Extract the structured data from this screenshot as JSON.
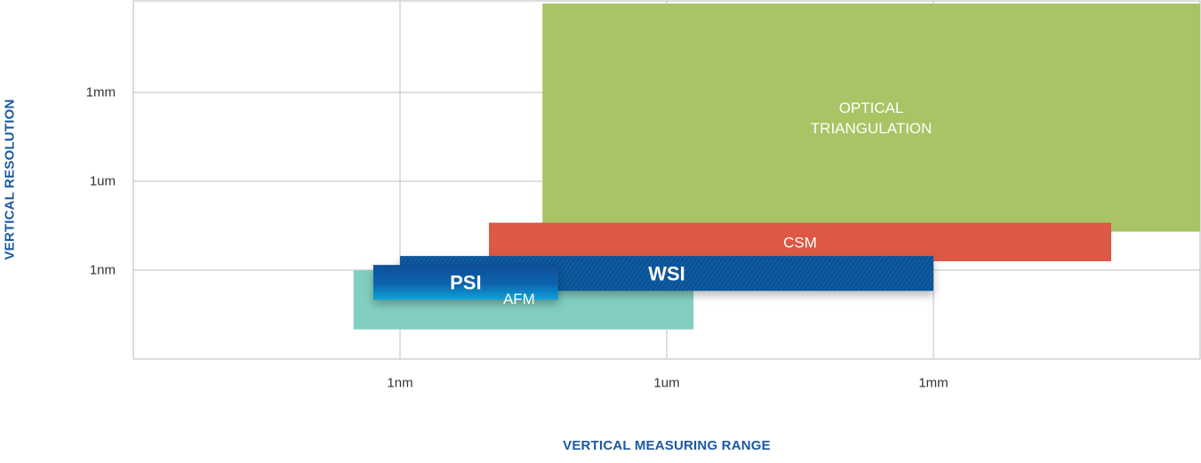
{
  "chart_data": {
    "type": "range-bands",
    "xlabel": "VERTICAL MEASURING RANGE",
    "ylabel": "VERTICAL RESOLUTION",
    "x_ticks": [
      "1nm",
      "1um",
      "1mm"
    ],
    "y_ticks": [
      "1mm",
      "1um",
      "1nm"
    ],
    "x_scale": "log (nm, decades of 1000)",
    "y_scale": "log (nm, decades of 1000)",
    "xlim_nm": [
      0.001,
      1000000000
    ],
    "ylim_nm": [
      0.001,
      1000000000
    ],
    "grid": true,
    "regions": [
      {
        "name": "OPTICAL TRIANGULATION",
        "label_lines": [
          "OPTICAL",
          "TRIANGULATION"
        ],
        "x_range_nm": [
          40,
          1000000000
        ],
        "y_range_nm": [
          20,
          1000000000
        ],
        "color": "#a9c464",
        "text_color": "#ffffff"
      },
      {
        "name": "CSM",
        "label_lines": [
          "CSM"
        ],
        "x_range_nm": [
          10,
          100000000
        ],
        "y_range_nm": [
          2,
          40
        ],
        "color": "#dd5845",
        "text_color": "#ffffff"
      },
      {
        "name": "AFM",
        "label_lines": [
          "AFM"
        ],
        "x_range_nm": [
          0.3,
          2000
        ],
        "y_range_nm": [
          0.01,
          1
        ],
        "color": "#82cfc1",
        "text_color": "#ffffff"
      },
      {
        "name": "WSI",
        "label_lines": [
          "WSI"
        ],
        "x_range_nm": [
          1,
          1000000
        ],
        "y_range_nm": [
          0.2,
          3
        ],
        "color": "#0d58a0",
        "text_color": "#ffffff",
        "hatched": true,
        "bold": true
      },
      {
        "name": "PSI",
        "label_lines": [
          "PSI"
        ],
        "x_range_nm": [
          0.5,
          60
        ],
        "y_range_nm": [
          0.1,
          1.5
        ],
        "color": "#0a68b0",
        "text_color": "#ffffff",
        "bold": true
      }
    ]
  }
}
